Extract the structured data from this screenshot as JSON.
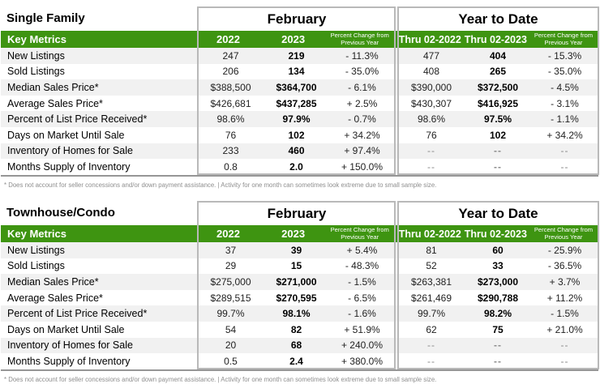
{
  "headers": {
    "key_metrics": "Key Metrics",
    "month_group": "February",
    "ytd_group": "Year to Date",
    "col_2022": "2022",
    "col_2023": "2023",
    "col_thru_2022": "Thru 02-2022",
    "col_thru_2023": "Thru 02-2023",
    "percent_change": "Percent Change from Previous Year"
  },
  "footnote": "* Does not account for seller concessions and/or down payment assistance.  |  Activity for one month can sometimes look extreme due to small sample size.",
  "colors": {
    "header_green": "#3E9411",
    "row_stripe": "#F1F1F1",
    "box_border": "#B9B9B9",
    "table_bottom_line": "#969696",
    "footnote_gray": "#8F8F8F"
  },
  "tables": [
    {
      "title": "Single Family",
      "rows": [
        {
          "metric": "New Listings",
          "feb_2022": "247",
          "feb_2023": "219",
          "feb_change": "- 11.3%",
          "ytd_2022": "477",
          "ytd_2023": "404",
          "ytd_change": "- 15.3%"
        },
        {
          "metric": "Sold Listings",
          "feb_2022": "206",
          "feb_2023": "134",
          "feb_change": "- 35.0%",
          "ytd_2022": "408",
          "ytd_2023": "265",
          "ytd_change": "- 35.0%"
        },
        {
          "metric": "Median Sales Price*",
          "feb_2022": "$388,500",
          "feb_2023": "$364,700",
          "feb_change": "- 6.1%",
          "ytd_2022": "$390,000",
          "ytd_2023": "$372,500",
          "ytd_change": "- 4.5%"
        },
        {
          "metric": "Average Sales Price*",
          "feb_2022": "$426,681",
          "feb_2023": "$437,285",
          "feb_change": "+ 2.5%",
          "ytd_2022": "$430,307",
          "ytd_2023": "$416,925",
          "ytd_change": "- 3.1%"
        },
        {
          "metric": "Percent of List Price Received*",
          "feb_2022": "98.6%",
          "feb_2023": "97.9%",
          "feb_change": "- 0.7%",
          "ytd_2022": "98.6%",
          "ytd_2023": "97.5%",
          "ytd_change": "- 1.1%"
        },
        {
          "metric": "Days on Market Until Sale",
          "feb_2022": "76",
          "feb_2023": "102",
          "feb_change": "+ 34.2%",
          "ytd_2022": "76",
          "ytd_2023": "102",
          "ytd_change": "+ 34.2%"
        },
        {
          "metric": "Inventory of Homes for Sale",
          "feb_2022": "233",
          "feb_2023": "460",
          "feb_change": "+ 97.4%",
          "ytd_2022": "--",
          "ytd_2023": "--",
          "ytd_change": "--"
        },
        {
          "metric": "Months Supply of Inventory",
          "feb_2022": "0.8",
          "feb_2023": "2.0",
          "feb_change": "+ 150.0%",
          "ytd_2022": "--",
          "ytd_2023": "--",
          "ytd_change": "--"
        }
      ]
    },
    {
      "title": "Townhouse/Condo",
      "rows": [
        {
          "metric": "New Listings",
          "feb_2022": "37",
          "feb_2023": "39",
          "feb_change": "+ 5.4%",
          "ytd_2022": "81",
          "ytd_2023": "60",
          "ytd_change": "- 25.9%"
        },
        {
          "metric": "Sold Listings",
          "feb_2022": "29",
          "feb_2023": "15",
          "feb_change": "- 48.3%",
          "ytd_2022": "52",
          "ytd_2023": "33",
          "ytd_change": "- 36.5%"
        },
        {
          "metric": "Median Sales Price*",
          "feb_2022": "$275,000",
          "feb_2023": "$271,000",
          "feb_change": "- 1.5%",
          "ytd_2022": "$263,381",
          "ytd_2023": "$273,000",
          "ytd_change": "+ 3.7%"
        },
        {
          "metric": "Average Sales Price*",
          "feb_2022": "$289,515",
          "feb_2023": "$270,595",
          "feb_change": "- 6.5%",
          "ytd_2022": "$261,469",
          "ytd_2023": "$290,788",
          "ytd_change": "+ 11.2%"
        },
        {
          "metric": "Percent of List Price Received*",
          "feb_2022": "99.7%",
          "feb_2023": "98.1%",
          "feb_change": "- 1.6%",
          "ytd_2022": "99.7%",
          "ytd_2023": "98.2%",
          "ytd_change": "- 1.5%"
        },
        {
          "metric": "Days on Market Until Sale",
          "feb_2022": "54",
          "feb_2023": "82",
          "feb_change": "+ 51.9%",
          "ytd_2022": "62",
          "ytd_2023": "75",
          "ytd_change": "+ 21.0%"
        },
        {
          "metric": "Inventory of Homes for Sale",
          "feb_2022": "20",
          "feb_2023": "68",
          "feb_change": "+ 240.0%",
          "ytd_2022": "--",
          "ytd_2023": "--",
          "ytd_change": "--"
        },
        {
          "metric": "Months Supply of Inventory",
          "feb_2022": "0.5",
          "feb_2023": "2.4",
          "feb_change": "+ 380.0%",
          "ytd_2022": "--",
          "ytd_2023": "--",
          "ytd_change": "--"
        }
      ]
    }
  ]
}
